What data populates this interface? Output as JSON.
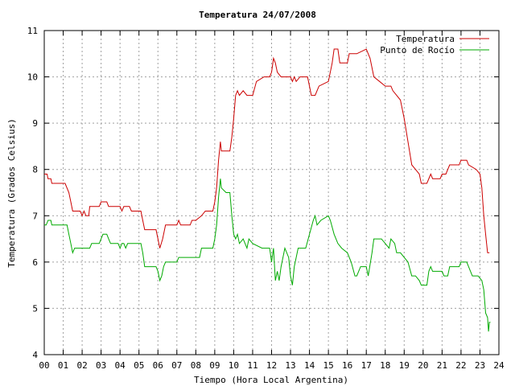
{
  "chart_data": {
    "type": "line",
    "title": "Temperatura 24/07/2008",
    "xlabel": "Tiempo (Hora Local Argentina)",
    "ylabel": "Temperatura (Grados Celsius)",
    "xlim": [
      0,
      24
    ],
    "ylim": [
      4,
      11
    ],
    "xticks": [
      "00",
      "01",
      "02",
      "03",
      "04",
      "05",
      "06",
      "07",
      "08",
      "09",
      "10",
      "11",
      "12",
      "13",
      "14",
      "15",
      "16",
      "17",
      "18",
      "19",
      "20",
      "21",
      "22",
      "23",
      "24"
    ],
    "yticks": [
      "4",
      "5",
      "6",
      "7",
      "8",
      "9",
      "10",
      "11"
    ],
    "grid": true,
    "legend_position": "top-right",
    "series": [
      {
        "name": "Temperatura",
        "color": "#cc0000",
        "points": [
          [
            0,
            7.9
          ],
          [
            0.15,
            7.9
          ],
          [
            0.2,
            7.8
          ],
          [
            0.35,
            7.8
          ],
          [
            0.4,
            7.7
          ],
          [
            1.1,
            7.7
          ],
          [
            1.3,
            7.5
          ],
          [
            1.4,
            7.3
          ],
          [
            1.5,
            7.1
          ],
          [
            1.9,
            7.1
          ],
          [
            2.0,
            7.0
          ],
          [
            2.1,
            7.1
          ],
          [
            2.2,
            7.0
          ],
          [
            2.35,
            7.0
          ],
          [
            2.4,
            7.2
          ],
          [
            2.9,
            7.2
          ],
          [
            3.0,
            7.3
          ],
          [
            3.3,
            7.3
          ],
          [
            3.4,
            7.2
          ],
          [
            4.0,
            7.2
          ],
          [
            4.1,
            7.1
          ],
          [
            4.2,
            7.2
          ],
          [
            4.5,
            7.2
          ],
          [
            4.6,
            7.1
          ],
          [
            5.1,
            7.1
          ],
          [
            5.2,
            6.9
          ],
          [
            5.3,
            6.7
          ],
          [
            5.9,
            6.7
          ],
          [
            6.0,
            6.5
          ],
          [
            6.1,
            6.3
          ],
          [
            6.25,
            6.5
          ],
          [
            6.4,
            6.8
          ],
          [
            7.0,
            6.8
          ],
          [
            7.1,
            6.9
          ],
          [
            7.2,
            6.8
          ],
          [
            7.7,
            6.8
          ],
          [
            7.8,
            6.9
          ],
          [
            8.0,
            6.9
          ],
          [
            8.3,
            7.0
          ],
          [
            8.5,
            7.1
          ],
          [
            8.9,
            7.1
          ],
          [
            9.0,
            7.3
          ],
          [
            9.1,
            7.6
          ],
          [
            9.2,
            8.2
          ],
          [
            9.3,
            8.6
          ],
          [
            9.35,
            8.4
          ],
          [
            9.8,
            8.4
          ],
          [
            9.9,
            8.7
          ],
          [
            10.0,
            9.1
          ],
          [
            10.1,
            9.6
          ],
          [
            10.2,
            9.7
          ],
          [
            10.3,
            9.6
          ],
          [
            10.5,
            9.7
          ],
          [
            10.7,
            9.6
          ],
          [
            11.0,
            9.6
          ],
          [
            11.2,
            9.9
          ],
          [
            11.6,
            10.0
          ],
          [
            11.9,
            10.0
          ],
          [
            12.0,
            10.1
          ],
          [
            12.1,
            10.4
          ],
          [
            12.2,
            10.3
          ],
          [
            12.3,
            10.1
          ],
          [
            12.5,
            10.0
          ],
          [
            13.0,
            10.0
          ],
          [
            13.1,
            9.9
          ],
          [
            13.2,
            10.0
          ],
          [
            13.3,
            9.9
          ],
          [
            13.5,
            10.0
          ],
          [
            13.9,
            10.0
          ],
          [
            14.0,
            9.8
          ],
          [
            14.1,
            9.6
          ],
          [
            14.3,
            9.6
          ],
          [
            14.5,
            9.8
          ],
          [
            15.0,
            9.9
          ],
          [
            15.2,
            10.3
          ],
          [
            15.3,
            10.6
          ],
          [
            15.5,
            10.6
          ],
          [
            15.6,
            10.3
          ],
          [
            16.0,
            10.3
          ],
          [
            16.1,
            10.5
          ],
          [
            16.5,
            10.5
          ],
          [
            17.0,
            10.6
          ],
          [
            17.2,
            10.4
          ],
          [
            17.4,
            10.0
          ],
          [
            17.7,
            9.9
          ],
          [
            18.0,
            9.8
          ],
          [
            18.3,
            9.8
          ],
          [
            18.4,
            9.7
          ],
          [
            18.6,
            9.6
          ],
          [
            18.8,
            9.5
          ],
          [
            19.0,
            9.1
          ],
          [
            19.2,
            8.6
          ],
          [
            19.4,
            8.1
          ],
          [
            19.6,
            8.0
          ],
          [
            19.8,
            7.9
          ],
          [
            19.9,
            7.7
          ],
          [
            20.2,
            7.7
          ],
          [
            20.4,
            7.9
          ],
          [
            20.5,
            7.8
          ],
          [
            20.6,
            7.8
          ],
          [
            20.9,
            7.8
          ],
          [
            21.0,
            7.9
          ],
          [
            21.2,
            7.9
          ],
          [
            21.4,
            8.1
          ],
          [
            21.9,
            8.1
          ],
          [
            22.0,
            8.2
          ],
          [
            22.3,
            8.2
          ],
          [
            22.4,
            8.1
          ],
          [
            22.8,
            8.0
          ],
          [
            23.0,
            7.9
          ],
          [
            23.1,
            7.6
          ],
          [
            23.2,
            7.0
          ],
          [
            23.3,
            6.6
          ],
          [
            23.4,
            6.2
          ],
          [
            23.5,
            6.2
          ]
        ]
      },
      {
        "name": "Punto de Rocío",
        "color": "#00aa00",
        "points": [
          [
            0,
            6.8
          ],
          [
            0.1,
            6.8
          ],
          [
            0.2,
            6.9
          ],
          [
            0.35,
            6.9
          ],
          [
            0.4,
            6.8
          ],
          [
            1.2,
            6.8
          ],
          [
            1.3,
            6.6
          ],
          [
            1.4,
            6.4
          ],
          [
            1.5,
            6.2
          ],
          [
            1.6,
            6.3
          ],
          [
            2.4,
            6.3
          ],
          [
            2.5,
            6.4
          ],
          [
            2.9,
            6.4
          ],
          [
            3.0,
            6.5
          ],
          [
            3.1,
            6.6
          ],
          [
            3.3,
            6.6
          ],
          [
            3.4,
            6.5
          ],
          [
            3.5,
            6.4
          ],
          [
            3.9,
            6.4
          ],
          [
            4.0,
            6.3
          ],
          [
            4.1,
            6.4
          ],
          [
            4.2,
            6.4
          ],
          [
            4.3,
            6.3
          ],
          [
            4.4,
            6.4
          ],
          [
            5.1,
            6.4
          ],
          [
            5.2,
            6.2
          ],
          [
            5.3,
            5.9
          ],
          [
            5.9,
            5.9
          ],
          [
            6.0,
            5.8
          ],
          [
            6.1,
            5.6
          ],
          [
            6.2,
            5.7
          ],
          [
            6.3,
            5.9
          ],
          [
            6.4,
            6.0
          ],
          [
            7.0,
            6.0
          ],
          [
            7.1,
            6.1
          ],
          [
            8.2,
            6.1
          ],
          [
            8.3,
            6.3
          ],
          [
            8.9,
            6.3
          ],
          [
            9.0,
            6.5
          ],
          [
            9.1,
            6.8
          ],
          [
            9.2,
            7.4
          ],
          [
            9.3,
            7.8
          ],
          [
            9.35,
            7.6
          ],
          [
            9.6,
            7.5
          ],
          [
            9.8,
            7.5
          ],
          [
            9.9,
            7.0
          ],
          [
            10.0,
            6.6
          ],
          [
            10.1,
            6.5
          ],
          [
            10.2,
            6.6
          ],
          [
            10.3,
            6.4
          ],
          [
            10.5,
            6.5
          ],
          [
            10.7,
            6.3
          ],
          [
            10.8,
            6.5
          ],
          [
            11.0,
            6.4
          ],
          [
            11.5,
            6.3
          ],
          [
            11.9,
            6.3
          ],
          [
            12.0,
            6.0
          ],
          [
            12.1,
            6.3
          ],
          [
            12.2,
            5.6
          ],
          [
            12.3,
            5.8
          ],
          [
            12.4,
            5.6
          ],
          [
            12.5,
            5.9
          ],
          [
            12.7,
            6.3
          ],
          [
            12.9,
            6.1
          ],
          [
            13.0,
            5.7
          ],
          [
            13.1,
            5.5
          ],
          [
            13.2,
            5.9
          ],
          [
            13.4,
            6.3
          ],
          [
            13.8,
            6.3
          ],
          [
            14.0,
            6.6
          ],
          [
            14.2,
            6.9
          ],
          [
            14.3,
            7.0
          ],
          [
            14.4,
            6.8
          ],
          [
            14.6,
            6.9
          ],
          [
            15.0,
            7.0
          ],
          [
            15.1,
            6.9
          ],
          [
            15.3,
            6.6
          ],
          [
            15.5,
            6.4
          ],
          [
            15.7,
            6.3
          ],
          [
            16.0,
            6.2
          ],
          [
            16.2,
            6.0
          ],
          [
            16.4,
            5.7
          ],
          [
            16.5,
            5.7
          ],
          [
            16.7,
            5.9
          ],
          [
            16.9,
            5.9
          ],
          [
            17.0,
            5.9
          ],
          [
            17.1,
            5.7
          ],
          [
            17.3,
            6.2
          ],
          [
            17.4,
            6.5
          ],
          [
            17.8,
            6.5
          ],
          [
            18.0,
            6.4
          ],
          [
            18.2,
            6.3
          ],
          [
            18.3,
            6.5
          ],
          [
            18.5,
            6.4
          ],
          [
            18.6,
            6.2
          ],
          [
            18.8,
            6.2
          ],
          [
            19.0,
            6.1
          ],
          [
            19.2,
            6.0
          ],
          [
            19.4,
            5.7
          ],
          [
            19.6,
            5.7
          ],
          [
            19.8,
            5.6
          ],
          [
            19.9,
            5.5
          ],
          [
            20.2,
            5.5
          ],
          [
            20.3,
            5.8
          ],
          [
            20.4,
            5.9
          ],
          [
            20.5,
            5.8
          ],
          [
            20.8,
            5.8
          ],
          [
            21.0,
            5.8
          ],
          [
            21.1,
            5.7
          ],
          [
            21.3,
            5.7
          ],
          [
            21.4,
            5.9
          ],
          [
            21.9,
            5.9
          ],
          [
            22.0,
            6.0
          ],
          [
            22.3,
            6.0
          ],
          [
            22.4,
            5.9
          ],
          [
            22.6,
            5.7
          ],
          [
            22.9,
            5.7
          ],
          [
            23.1,
            5.6
          ],
          [
            23.2,
            5.4
          ],
          [
            23.3,
            4.9
          ],
          [
            23.4,
            4.8
          ],
          [
            23.45,
            4.5
          ],
          [
            23.5,
            4.7
          ],
          [
            23.55,
            4.7
          ]
        ]
      }
    ]
  }
}
